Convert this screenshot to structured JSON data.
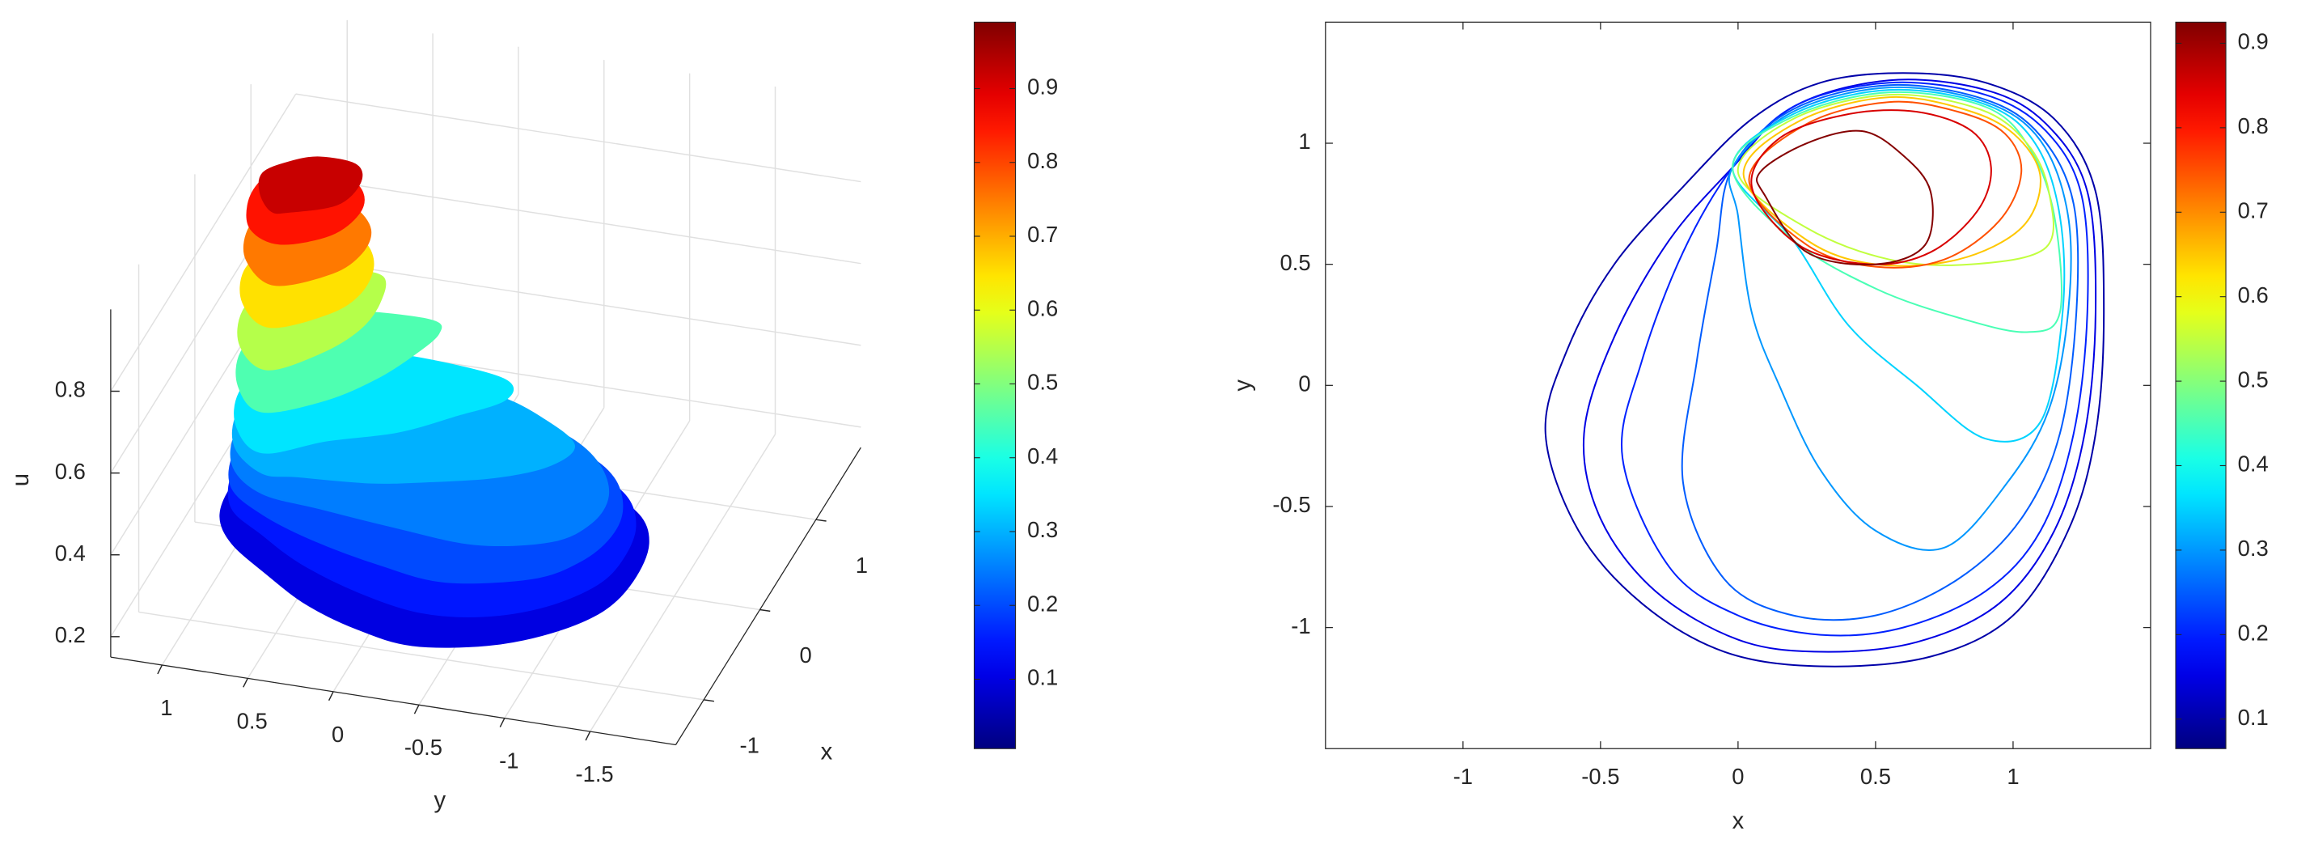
{
  "chart_data": [
    {
      "type": "surface",
      "xlabel": "x",
      "ylabel": "y",
      "zlabel": "u",
      "xlim": [
        -1.5,
        1.8
      ],
      "ylim": [
        -2,
        1.3
      ],
      "zlim": [
        0.15,
        1
      ],
      "xticks": [
        -1,
        0,
        1
      ],
      "yticks": [
        -1.5,
        -1,
        -0.5,
        0,
        0.5,
        1
      ],
      "zticks": [
        0.2,
        0.4,
        0.6,
        0.8
      ],
      "grid": true,
      "colormap": "jet",
      "clim": [
        0.006,
        0.99
      ],
      "colorbar_ticks": [
        0.1,
        0.2,
        0.3,
        0.4,
        0.5,
        0.6,
        0.7,
        0.8,
        0.9
      ]
    },
    {
      "type": "contour",
      "xlabel": "x",
      "ylabel": "y",
      "xlim": [
        -1.5,
        1.5
      ],
      "ylim": [
        -1.5,
        1.5
      ],
      "xticks": [
        -1,
        -0.5,
        0,
        0.5,
        1
      ],
      "yticks": [
        -1,
        -0.5,
        0,
        0.5,
        1
      ],
      "colormap": "jet",
      "clim": [
        0.065,
        0.925
      ],
      "colorbar_ticks": [
        0.1,
        0.2,
        0.3,
        0.4,
        0.5,
        0.6,
        0.7,
        0.8,
        0.9
      ],
      "contours": [
        {
          "level": 0.1,
          "x": [
            -0.7,
            -0.62,
            -0.45,
            -0.2,
            0.05,
            0.3,
            0.6,
            0.9,
            1.15,
            1.3,
            1.33,
            1.3,
            1.2,
            1.0,
            0.7,
            0.3,
            -0.05,
            -0.35,
            -0.58
          ],
          "y": [
            -0.2,
            0.15,
            0.5,
            0.82,
            1.1,
            1.25,
            1.29,
            1.25,
            1.1,
            0.8,
            0.3,
            -0.2,
            -0.6,
            -0.95,
            -1.12,
            -1.16,
            -1.1,
            -0.9,
            -0.6
          ]
        },
        {
          "level": 0.15,
          "x": [
            -0.56,
            -0.45,
            -0.25,
            -0.02,
            0.2,
            0.55,
            0.9,
            1.12,
            1.27,
            1.3,
            1.26,
            1.15,
            0.95,
            0.65,
            0.3,
            0,
            -0.3,
            -0.5
          ],
          "y": [
            -0.2,
            0.2,
            0.6,
            0.9,
            1.15,
            1.26,
            1.22,
            1.08,
            0.8,
            0.3,
            -0.2,
            -0.6,
            -0.9,
            -1.06,
            -1.1,
            -1.05,
            -0.85,
            -0.55
          ]
        },
        {
          "level": 0.2,
          "x": [
            -0.42,
            -0.35,
            -0.2,
            -0.02,
            0.2,
            0.55,
            0.9,
            1.12,
            1.25,
            1.27,
            1.22,
            1.1,
            0.9,
            0.6,
            0.3,
            0,
            -0.25
          ],
          "y": [
            -0.3,
            0.1,
            0.55,
            0.9,
            1.15,
            1.25,
            1.2,
            1.05,
            0.78,
            0.3,
            -0.2,
            -0.6,
            -0.85,
            -1.0,
            -1.03,
            -0.95,
            -0.75
          ]
        },
        {
          "level": 0.25,
          "x": [
            -0.2,
            -0.15,
            -0.08,
            -0.02,
            0.2,
            0.55,
            0.9,
            1.1,
            1.22,
            1.23,
            1.17,
            1.03,
            0.8,
            0.5,
            0.2,
            -0.05
          ],
          "y": [
            -0.4,
            0.1,
            0.55,
            0.9,
            1.14,
            1.24,
            1.18,
            1.03,
            0.75,
            0.3,
            -0.2,
            -0.55,
            -0.8,
            -0.95,
            -0.95,
            -0.8
          ]
        },
        {
          "level": 0.3,
          "x": [
            0.05,
            0,
            -0.02,
            0.2,
            0.55,
            0.9,
            1.1,
            1.2,
            1.2,
            1.13,
            0.98,
            0.75,
            0.5,
            0.3,
            0.15
          ],
          "y": [
            0.3,
            0.7,
            0.9,
            1.13,
            1.23,
            1.17,
            1.01,
            0.7,
            0.3,
            -0.1,
            -0.4,
            -0.67,
            -0.6,
            -0.35,
            0
          ]
        },
        {
          "level": 0.35,
          "x": [
            -0.02,
            0.2,
            0.4,
            0.65,
            0.9,
            1.1,
            1.18,
            1.17,
            1.08,
            0.9,
            0.55,
            0.2
          ],
          "y": [
            0.9,
            0.6,
            0.25,
            0,
            -0.22,
            -0.15,
            0.3,
            0.7,
            1.0,
            1.16,
            1.22,
            1.12
          ]
        },
        {
          "level": 0.45,
          "x": [
            -0.02,
            0.2,
            0.5,
            0.8,
            1.05,
            1.17,
            1.15,
            1.06,
            0.9,
            0.55,
            0.2
          ],
          "y": [
            0.9,
            0.6,
            0.4,
            0.28,
            0.22,
            0.3,
            0.7,
            0.98,
            1.15,
            1.21,
            1.11
          ]
        },
        {
          "level": 0.55,
          "x": [
            0,
            0.25,
            0.55,
            0.85,
            1.12,
            1.13,
            1.05,
            0.88,
            0.55,
            0.2
          ],
          "y": [
            0.88,
            0.65,
            0.52,
            0.5,
            0.57,
            0.8,
            1.0,
            1.14,
            1.2,
            1.1
          ]
        },
        {
          "level": 0.65,
          "x": [
            0.02,
            0.25,
            0.5,
            0.8,
            1.03,
            1.1,
            1.02,
            0.85,
            0.55,
            0.22
          ],
          "y": [
            0.87,
            0.6,
            0.5,
            0.52,
            0.65,
            0.85,
            1.02,
            1.13,
            1.19,
            1.09
          ]
        },
        {
          "level": 0.75,
          "x": [
            0.04,
            0.25,
            0.5,
            0.75,
            0.95,
            1.03,
            0.97,
            0.8,
            0.55,
            0.25
          ],
          "y": [
            0.85,
            0.58,
            0.49,
            0.52,
            0.68,
            0.88,
            1.04,
            1.13,
            1.17,
            1.08
          ]
        },
        {
          "level": 0.85,
          "x": [
            0.05,
            0.22,
            0.48,
            0.7,
            0.87,
            0.92,
            0.85,
            0.65,
            0.4,
            0.15
          ],
          "y": [
            0.82,
            0.58,
            0.5,
            0.55,
            0.72,
            0.9,
            1.05,
            1.13,
            1.12,
            1.02
          ]
        },
        {
          "level": 0.92,
          "x": [
            0.1,
            0.25,
            0.5,
            0.68,
            0.7,
            0.6,
            0.45,
            0.25,
            0.08
          ],
          "y": [
            0.78,
            0.55,
            0.5,
            0.58,
            0.8,
            0.95,
            1.05,
            1.0,
            0.88
          ]
        }
      ]
    }
  ]
}
